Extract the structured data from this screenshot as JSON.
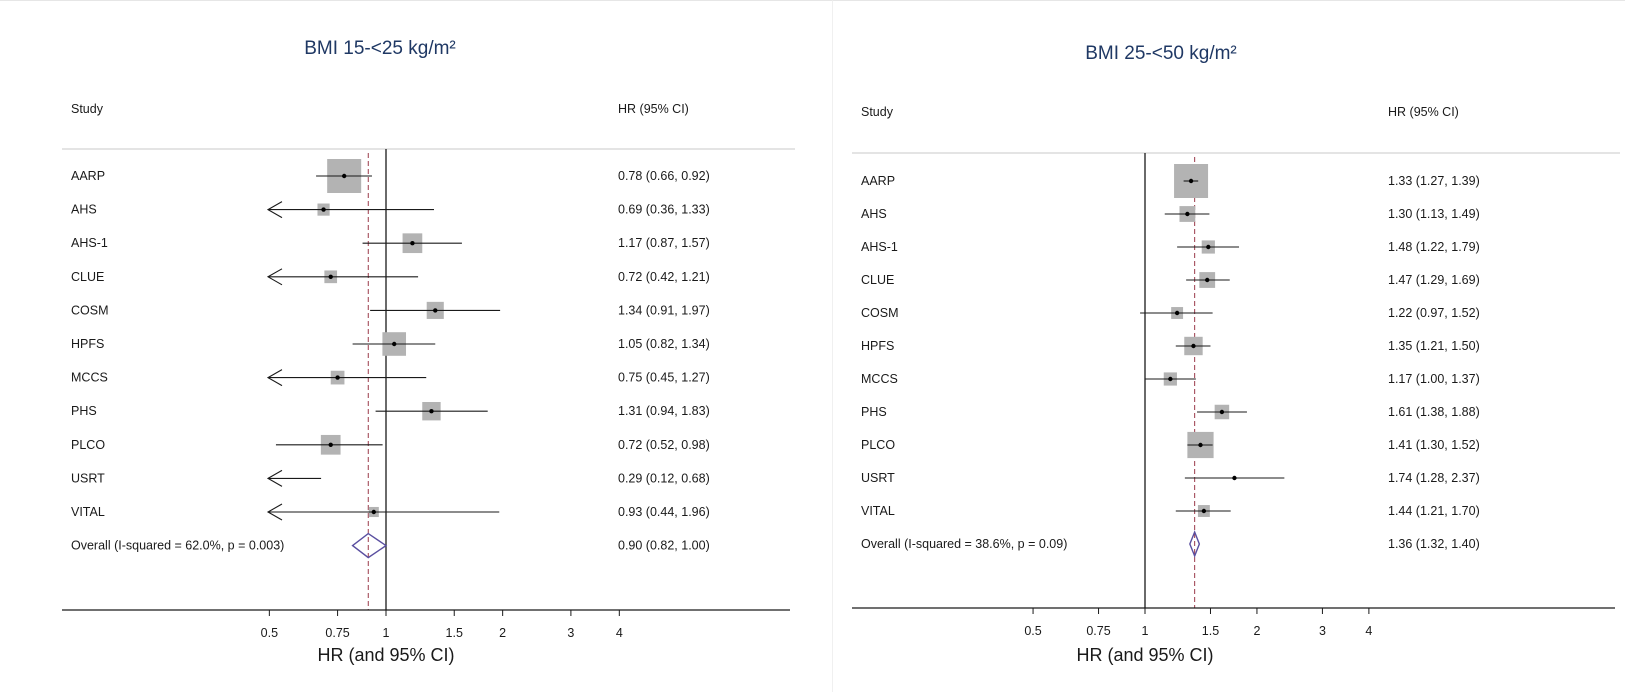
{
  "chart_data": [
    {
      "type": "forest",
      "title": "BMI 15-<25 kg/m²",
      "column_headers": {
        "study": "Study",
        "hr": "HR (95% CI)"
      },
      "xlabel": "HR (and 95% CI)",
      "x_scale": "log",
      "xlim": [
        0.42,
        4.0
      ],
      "x_ticks": [
        0.5,
        0.75,
        1,
        1.5,
        2,
        3,
        4
      ],
      "x_tick_labels": [
        "0.5",
        "0.75",
        "1",
        "1.5",
        "2",
        "3",
        "4"
      ],
      "null_line": 1,
      "studies": [
        {
          "study": "AARP",
          "hr": 0.78,
          "lo": 0.66,
          "hi": 0.92,
          "label": "0.78 (0.66, 0.92)",
          "weight": 1.0
        },
        {
          "study": "AHS",
          "hr": 0.69,
          "lo": 0.36,
          "hi": 1.33,
          "label": "0.69 (0.36, 1.33)",
          "weight": 0.16
        },
        {
          "study": "AHS-1",
          "hr": 1.17,
          "lo": 0.87,
          "hi": 1.57,
          "label": "1.17 (0.87, 1.57)",
          "weight": 0.45
        },
        {
          "study": "CLUE",
          "hr": 0.72,
          "lo": 0.42,
          "hi": 1.21,
          "label": "0.72 (0.42, 1.21)",
          "weight": 0.18
        },
        {
          "study": "COSM",
          "hr": 1.34,
          "lo": 0.91,
          "hi": 1.97,
          "label": "1.34 (0.91, 1.97)",
          "weight": 0.35
        },
        {
          "study": "HPFS",
          "hr": 1.05,
          "lo": 0.82,
          "hi": 1.34,
          "label": "1.05 (0.82, 1.34)",
          "weight": 0.6
        },
        {
          "study": "MCCS",
          "hr": 0.75,
          "lo": 0.45,
          "hi": 1.27,
          "label": "0.75 (0.45, 1.27)",
          "weight": 0.22
        },
        {
          "study": "PHS",
          "hr": 1.31,
          "lo": 0.94,
          "hi": 1.83,
          "label": "1.31 (0.94, 1.83)",
          "weight": 0.4
        },
        {
          "study": "PLCO",
          "hr": 0.72,
          "lo": 0.52,
          "hi": 0.98,
          "label": "0.72 (0.52, 0.98)",
          "weight": 0.45
        },
        {
          "study": "USRT",
          "hr": 0.29,
          "lo": 0.12,
          "hi": 0.68,
          "label": "0.29 (0.12, 0.68)",
          "weight": 0.0
        },
        {
          "study": "VITAL",
          "hr": 0.93,
          "lo": 0.44,
          "hi": 1.96,
          "label": "0.93 (0.44, 1.96)",
          "weight": 0.08
        }
      ],
      "overall": {
        "label_text": "Overall  (I-squared = 62.0%, p = 0.003)",
        "hr": 0.9,
        "lo": 0.82,
        "hi": 1.0,
        "label": "0.90 (0.82, 1.00)"
      }
    },
    {
      "type": "forest",
      "title": "BMI 25-<50 kg/m²",
      "column_headers": {
        "study": "Study",
        "hr": "HR (95% CI)"
      },
      "xlabel": "HR (and 95% CI)",
      "x_scale": "log",
      "xlim": [
        0.42,
        4.0
      ],
      "x_ticks": [
        0.5,
        0.75,
        1,
        1.5,
        2,
        3,
        4
      ],
      "x_tick_labels": [
        "0.5",
        "0.75",
        "1",
        "1.5",
        "2",
        "3",
        "4"
      ],
      "null_line": 1,
      "studies": [
        {
          "study": "AARP",
          "hr": 1.33,
          "lo": 1.27,
          "hi": 1.39,
          "label": "1.33 (1.27, 1.39)",
          "weight": 1.0
        },
        {
          "study": "AHS",
          "hr": 1.3,
          "lo": 1.13,
          "hi": 1.49,
          "label": "1.30 (1.13, 1.49)",
          "weight": 0.3
        },
        {
          "study": "AHS-1",
          "hr": 1.48,
          "lo": 1.22,
          "hi": 1.79,
          "label": "1.48 (1.22, 1.79)",
          "weight": 0.2
        },
        {
          "study": "CLUE",
          "hr": 1.47,
          "lo": 1.29,
          "hi": 1.69,
          "label": "1.47 (1.29, 1.69)",
          "weight": 0.3
        },
        {
          "study": "COSM",
          "hr": 1.22,
          "lo": 0.97,
          "hi": 1.52,
          "label": "1.22 (0.97, 1.52)",
          "weight": 0.15
        },
        {
          "study": "HPFS",
          "hr": 1.35,
          "lo": 1.21,
          "hi": 1.5,
          "label": "1.35 (1.21, 1.50)",
          "weight": 0.4
        },
        {
          "study": "MCCS",
          "hr": 1.17,
          "lo": 1.0,
          "hi": 1.37,
          "label": "1.17 (1.00, 1.37)",
          "weight": 0.2
        },
        {
          "study": "PHS",
          "hr": 1.61,
          "lo": 1.38,
          "hi": 1.88,
          "label": "1.61 (1.38, 1.88)",
          "weight": 0.25
        },
        {
          "study": "PLCO",
          "hr": 1.41,
          "lo": 1.3,
          "hi": 1.52,
          "label": "1.41 (1.30, 1.52)",
          "weight": 0.7
        },
        {
          "study": "USRT",
          "hr": 1.74,
          "lo": 1.28,
          "hi": 2.37,
          "label": "1.74 (1.28, 2.37)",
          "weight": 0.0
        },
        {
          "study": "VITAL",
          "hr": 1.44,
          "lo": 1.21,
          "hi": 1.7,
          "label": "1.44 (1.21, 1.70)",
          "weight": 0.15
        }
      ],
      "overall": {
        "label_text": "Overall  (I-squared = 38.6%, p = 0.09)",
        "hr": 1.36,
        "lo": 1.32,
        "hi": 1.4,
        "label": "1.36 (1.32, 1.40)"
      }
    }
  ],
  "colors": {
    "title": "#1f3864",
    "box": "#b3b3b3",
    "line": "#1a1a1a",
    "diamond": "#5a4fa0",
    "overall_dashed": "#9a3a4a"
  }
}
